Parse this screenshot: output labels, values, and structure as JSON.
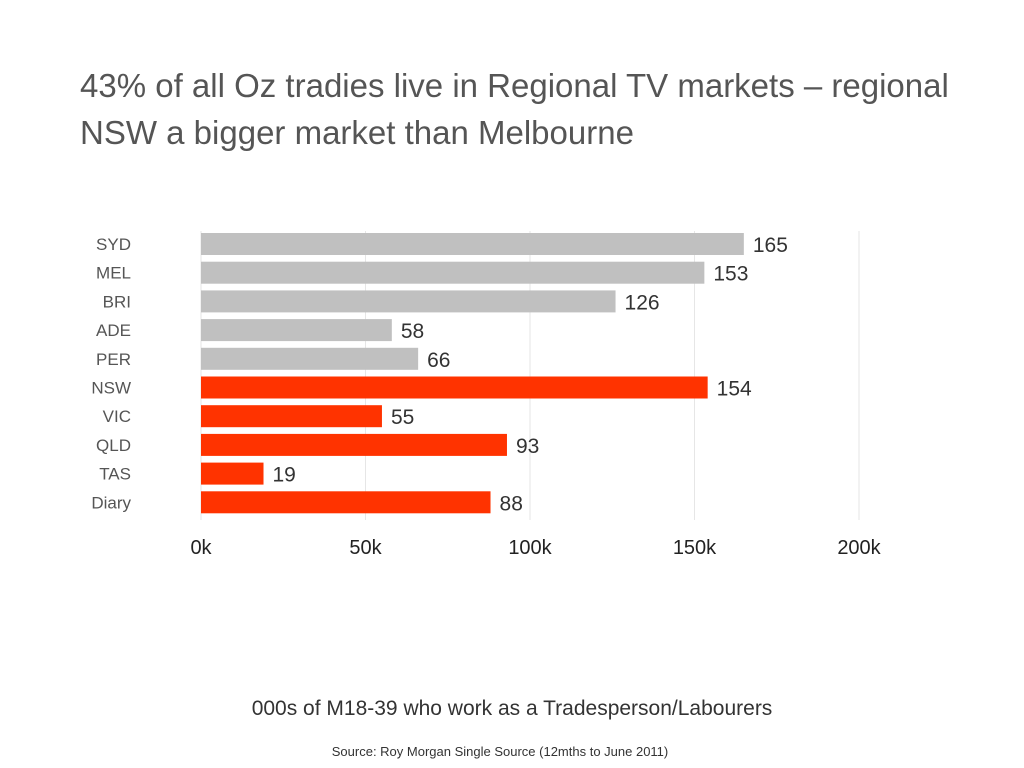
{
  "slide": {
    "title": "43% of all Oz tradies live in Regional TV markets – regional NSW a bigger market than Melbourne",
    "caption": "000s of M18-39 who work as a Tradesperson/Labourers",
    "source": "Source:  Roy Morgan Single Source (12mths to June 2011)"
  },
  "colors": {
    "metro": "#c0c0c0",
    "regional": "#ff3300",
    "grid": "#e6e6e6"
  },
  "chart_data": {
    "type": "bar",
    "orientation": "horizontal",
    "categories": [
      "SYD",
      "MEL",
      "BRI",
      "ADE",
      "PER",
      "NSW",
      "VIC",
      "QLD",
      "TAS",
      "Diary"
    ],
    "values": [
      165,
      153,
      126,
      58,
      66,
      154,
      55,
      93,
      19,
      88
    ],
    "value_labels": [
      "165",
      "153",
      "126",
      "58",
      "66",
      "154",
      "55",
      "93",
      "19",
      "88"
    ],
    "groups": [
      "metro",
      "metro",
      "metro",
      "metro",
      "metro",
      "regional",
      "regional",
      "regional",
      "regional",
      "regional"
    ],
    "x_ticks": [
      0,
      50,
      100,
      150,
      200
    ],
    "x_tick_labels": [
      "0k",
      "50k",
      "100k",
      "150k",
      "200k"
    ],
    "xlim": [
      0,
      200
    ],
    "grid": true,
    "legend": false
  }
}
